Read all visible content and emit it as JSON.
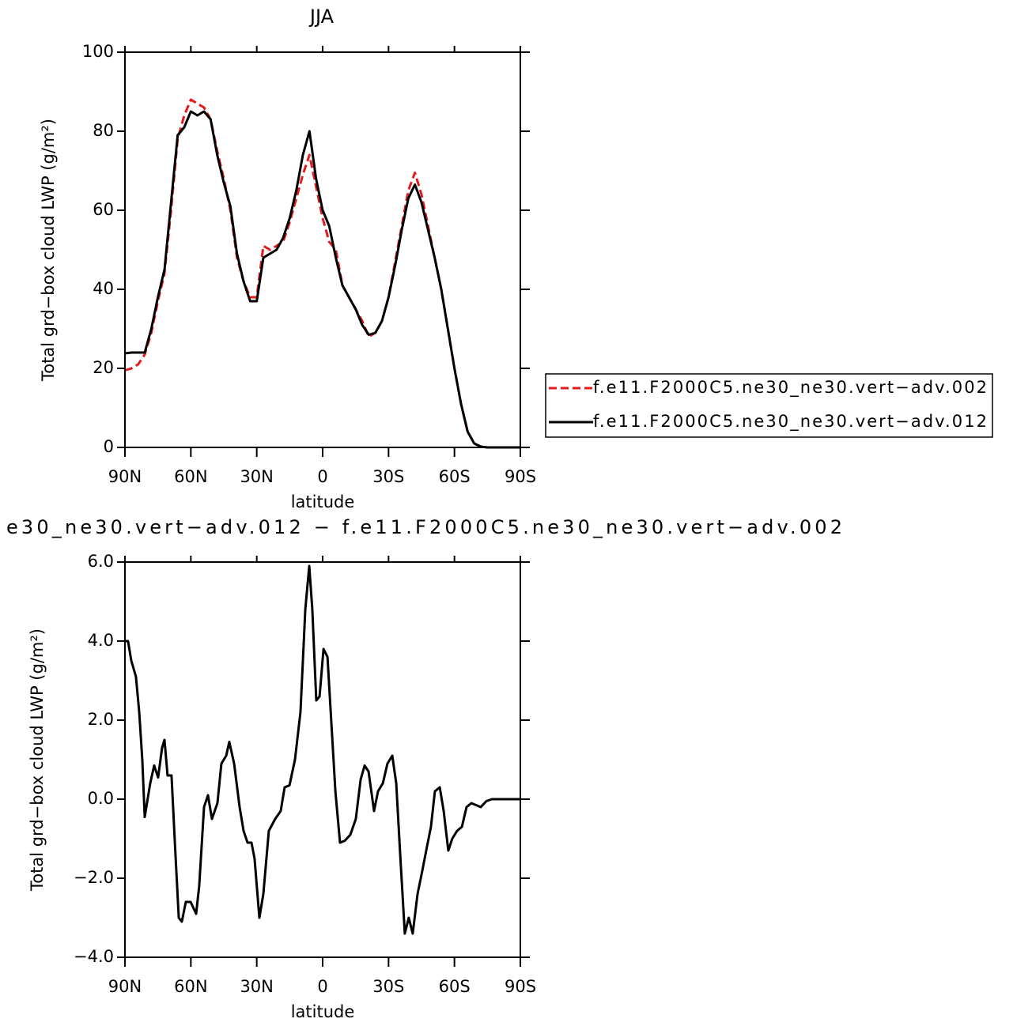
{
  "chart_data": [
    {
      "type": "line",
      "title": "JJA",
      "xlabel": "latitude",
      "ylabel": "Total grd−box cloud LWP (g/m²)",
      "x": [
        90,
        87,
        84,
        81,
        78,
        75,
        72,
        69,
        66,
        63,
        60,
        57,
        54,
        51,
        48,
        45,
        42,
        39,
        36,
        33,
        30,
        27,
        24,
        21,
        18,
        15,
        12,
        9,
        6,
        3,
        0,
        -3,
        -6,
        -9,
        -12,
        -15,
        -18,
        -21,
        -24,
        -27,
        -30,
        -33,
        -36,
        -39,
        -42,
        -45,
        -48,
        -51,
        -54,
        -57,
        -60,
        -63,
        -66,
        -69,
        -72,
        -75,
        -78,
        -81,
        -84,
        -87,
        -90
      ],
      "series": [
        {
          "name": "f.e11.F2000C5.ne30_ne30.vert−adv.002",
          "color": "#e41a1c",
          "linestyle": "dashed",
          "values": [
            19.5,
            20,
            21,
            23.5,
            29,
            37,
            44,
            60,
            78,
            84,
            88,
            87,
            86,
            83,
            75,
            68,
            60,
            48,
            42,
            38,
            38,
            51,
            50,
            51,
            52,
            57,
            63,
            69,
            74,
            66,
            58,
            52,
            50,
            41,
            38,
            35,
            32,
            28,
            29,
            32,
            38,
            47,
            56,
            65,
            69.5,
            64,
            56,
            48,
            40,
            30,
            20,
            11,
            4,
            1,
            0.2,
            0,
            0,
            0,
            0,
            0,
            0
          ]
        },
        {
          "name": "f.e11.F2000C5.ne30_ne30.vert−adv.012",
          "color": "#000000",
          "linestyle": "solid",
          "values": [
            23.8,
            24,
            24,
            24,
            30,
            38,
            45,
            62,
            79,
            81,
            85,
            84,
            85,
            83,
            74,
            67,
            61,
            49,
            42,
            37,
            37,
            48,
            49,
            50,
            53,
            58,
            65,
            74,
            80,
            68,
            60,
            56,
            48,
            41,
            38,
            35,
            31,
            28.5,
            29,
            32,
            38,
            46,
            55,
            63,
            66.5,
            62,
            55,
            48,
            40,
            30,
            20,
            11,
            4,
            1,
            0.2,
            0,
            0,
            0,
            0,
            0,
            0
          ]
        }
      ],
      "xlim": [
        90,
        -90
      ],
      "xticks": [
        {
          "value": 90,
          "label": "90N"
        },
        {
          "value": 60,
          "label": "60N"
        },
        {
          "value": 30,
          "label": "30N"
        },
        0,
        {
          "value": -30,
          "label": "30S"
        },
        {
          "value": -60,
          "label": "60S"
        },
        {
          "value": -90,
          "label": "90S"
        }
      ],
      "ylim": [
        0,
        100
      ],
      "yticks": [
        0,
        20,
        40,
        60,
        80,
        100
      ],
      "legend": "right"
    },
    {
      "type": "line",
      "title": "e30_ne30.vert−adv.012 − f.e11.F2000C5.ne30_ne30.vert−adv.002",
      "xlabel": "latitude",
      "ylabel": "Total grd−box cloud LWP (g/m²)",
      "x": [
        90,
        88.6,
        87.1,
        85,
        83.5,
        82.1,
        81,
        78.5,
        76.7,
        74.9,
        73.1,
        72,
        70.6,
        68.8,
        67,
        65.5,
        64.1,
        62.3,
        60.1,
        57.6,
        56.2,
        54,
        52.2,
        50.4,
        47.9,
        46.1,
        43.9,
        42.5,
        40.3,
        37.8,
        36,
        34.2,
        32.4,
        31,
        28.8,
        27,
        24.5,
        21.6,
        19.1,
        17.3,
        15.1,
        12.6,
        10.1,
        7.9,
        6.1,
        4.7,
        2.9,
        1.4,
        -0.4,
        -2.2,
        -4,
        -5.8,
        -7.9,
        -10.1,
        -12.6,
        -15.1,
        -17.3,
        -19.1,
        -20.9,
        -23.4,
        -25.2,
        -27.4,
        -29.5,
        -31.7,
        -33.5,
        -35.3,
        -37.4,
        -39.2,
        -41,
        -43.2,
        -45.4,
        -47.5,
        -49.3,
        -51.1,
        -53.3,
        -55.1,
        -57.2,
        -59,
        -61.2,
        -63.4,
        -65.5,
        -67.7,
        -69.8,
        -72,
        -74.5,
        -77,
        -90
      ],
      "series": [
        {
          "color": "#000000",
          "linestyle": "solid",
          "values": [
            4.0,
            4.0,
            3.5,
            3.1,
            2.2,
            1.0,
            -0.45,
            0.4,
            0.85,
            0.55,
            1.3,
            1.5,
            0.6,
            0.6,
            -1.4,
            -3.0,
            -3.1,
            -2.6,
            -2.6,
            -2.9,
            -2.2,
            -0.2,
            0.1,
            -0.5,
            -0.1,
            0.9,
            1.1,
            1.45,
            0.9,
            -0.2,
            -0.8,
            -1.1,
            -1.1,
            -1.5,
            -3.0,
            -2.4,
            -0.8,
            -0.5,
            -0.3,
            0.3,
            0.35,
            1.0,
            2.2,
            4.8,
            5.9,
            4.8,
            2.5,
            2.6,
            3.8,
            3.6,
            1.9,
            0.2,
            -1.1,
            -1.05,
            -0.9,
            -0.5,
            0.5,
            0.85,
            0.7,
            -0.3,
            0.2,
            0.4,
            0.9,
            1.1,
            0.4,
            -1.4,
            -3.4,
            -3.0,
            -3.4,
            -2.4,
            -1.8,
            -1.2,
            -0.7,
            0.2,
            0.3,
            -0.3,
            -1.3,
            -1.0,
            -0.8,
            -0.7,
            -0.2,
            -0.1,
            -0.15,
            -0.2,
            -0.05,
            0,
            0
          ]
        }
      ],
      "xlim": [
        90,
        -90
      ],
      "xticks": [
        {
          "value": 90,
          "label": "90N"
        },
        {
          "value": 60,
          "label": "60N"
        },
        {
          "value": 30,
          "label": "30N"
        },
        0,
        {
          "value": -30,
          "label": "30S"
        },
        {
          "value": -60,
          "label": "60S"
        },
        {
          "value": -90,
          "label": "90S"
        }
      ],
      "ylim": [
        -4,
        6
      ],
      "yticks": [
        {
          "value": -4,
          "label": "−4.0"
        },
        {
          "value": -2,
          "label": "−2.0"
        },
        {
          "value": 0,
          "label": "0.0"
        },
        {
          "value": 2,
          "label": "2.0"
        },
        {
          "value": 4,
          "label": "4.0"
        },
        {
          "value": 6,
          "label": "6.0"
        }
      ]
    }
  ]
}
